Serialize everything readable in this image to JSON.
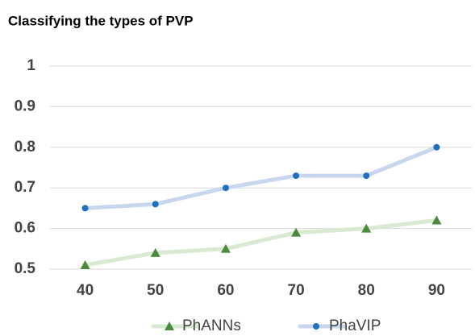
{
  "chart_data": {
    "type": "line",
    "title": "Classifying the types of PVP",
    "categories": [
      "40",
      "50",
      "60",
      "70",
      "80",
      "90"
    ],
    "series": [
      {
        "name": "PhANNs",
        "color": "#4e8a3e",
        "line_color": "#d9ead3",
        "marker": "triangle",
        "values": [
          0.51,
          0.54,
          0.55,
          0.59,
          0.6,
          0.62
        ]
      },
      {
        "name": "PhaVIP",
        "color": "#1f6fbf",
        "line_color": "#c9d7ee",
        "marker": "circle",
        "values": [
          0.65,
          0.66,
          0.7,
          0.73,
          0.73,
          0.8
        ]
      }
    ],
    "ylim": [
      0.5,
      1
    ],
    "yticks": [
      0.5,
      0.6,
      0.7,
      0.8,
      0.9,
      1
    ],
    "grid": true,
    "legend": "bottom"
  }
}
